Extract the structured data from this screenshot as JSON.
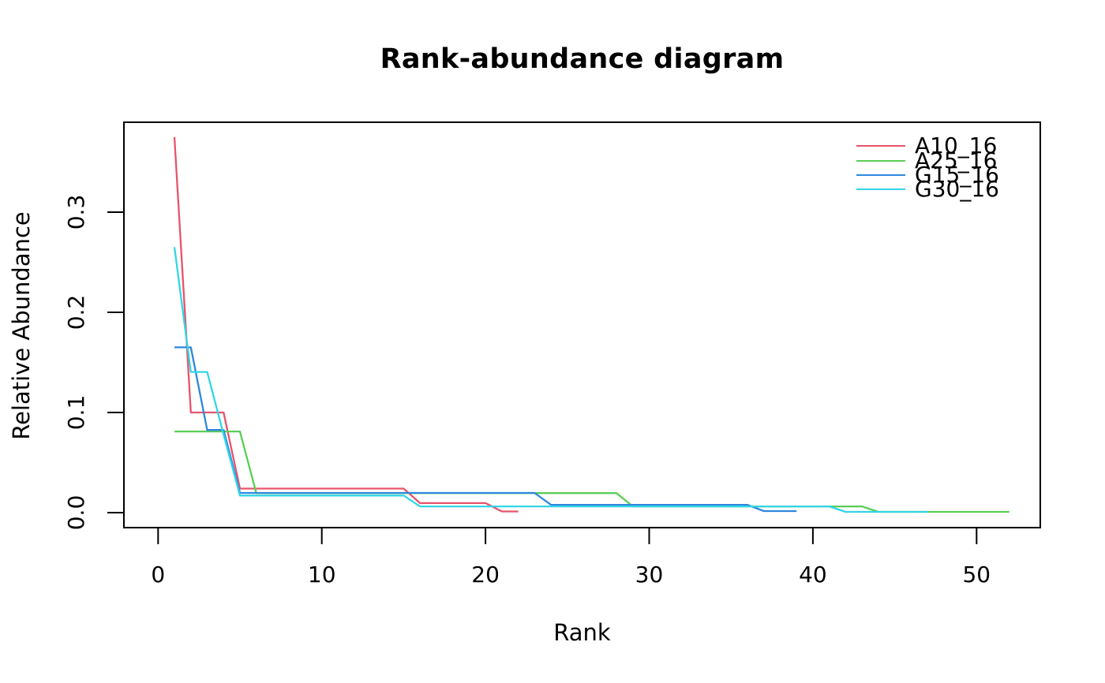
{
  "chart_data": {
    "type": "line",
    "title": "Rank-abundance diagram",
    "xlabel": "Rank",
    "ylabel": "Relative Abundance",
    "grid": false,
    "legend_position": "top-right",
    "line_style": "step-like polyline of per-rank relative abundances",
    "xlim": [
      -1,
      53
    ],
    "ylim": [
      0,
      0.39
    ],
    "x_axis": {
      "ticks": [
        0,
        10,
        20,
        30,
        40,
        50
      ],
      "tick_labels": [
        "0",
        "10",
        "20",
        "30",
        "40",
        "50"
      ]
    },
    "y_axis": {
      "ticks": [
        0.0,
        0.1,
        0.2,
        0.3
      ],
      "tick_labels": [
        "0.0",
        "0.1",
        "0.2",
        "0.3"
      ]
    },
    "x_start_rank": 1,
    "series": [
      {
        "name": "A10_16",
        "color": "#e6546b",
        "values": [
          0.375,
          0.1,
          0.1,
          0.1,
          0.024,
          0.024,
          0.024,
          0.024,
          0.024,
          0.024,
          0.024,
          0.024,
          0.024,
          0.024,
          0.024,
          0.0095,
          0.0095,
          0.0095,
          0.0095,
          0.0095,
          0.0012,
          0.0012
        ]
      },
      {
        "name": "A25_16",
        "color": "#5bce55",
        "values": [
          0.081,
          0.081,
          0.081,
          0.081,
          0.081,
          0.0195,
          0.0195,
          0.0195,
          0.0195,
          0.0195,
          0.0195,
          0.0195,
          0.0195,
          0.0195,
          0.0195,
          0.0195,
          0.0195,
          0.0195,
          0.0195,
          0.0195,
          0.0195,
          0.0195,
          0.0195,
          0.0195,
          0.0195,
          0.0195,
          0.0195,
          0.0195,
          0.0062,
          0.0062,
          0.0062,
          0.0062,
          0.0062,
          0.0062,
          0.0062,
          0.0062,
          0.0062,
          0.0062,
          0.0062,
          0.0062,
          0.0062,
          0.0062,
          0.0062,
          0.0008,
          0.0008,
          0.0008,
          0.0008,
          0.0008,
          0.0008,
          0.0008,
          0.0008,
          0.0008
        ]
      },
      {
        "name": "G15_16",
        "color": "#2e87dd",
        "values": [
          0.165,
          0.165,
          0.0825,
          0.0825,
          0.0197,
          0.0197,
          0.0197,
          0.0197,
          0.0197,
          0.0197,
          0.0197,
          0.0197,
          0.0197,
          0.0197,
          0.0197,
          0.0197,
          0.0197,
          0.0197,
          0.0197,
          0.0197,
          0.0197,
          0.0197,
          0.0197,
          0.0078,
          0.0078,
          0.0078,
          0.0078,
          0.0078,
          0.0078,
          0.0078,
          0.0078,
          0.0078,
          0.0078,
          0.0078,
          0.0078,
          0.0078,
          0.0016,
          0.0016,
          0.0016
        ]
      },
      {
        "name": "G30_16",
        "color": "#33d5e6",
        "values": [
          0.265,
          0.1405,
          0.1405,
          0.078,
          0.0171,
          0.0171,
          0.0171,
          0.0171,
          0.0171,
          0.0171,
          0.0171,
          0.0171,
          0.0171,
          0.0171,
          0.0171,
          0.0062,
          0.0062,
          0.0062,
          0.0062,
          0.0062,
          0.0062,
          0.0062,
          0.0062,
          0.0062,
          0.0062,
          0.0062,
          0.0062,
          0.0062,
          0.0062,
          0.0062,
          0.0062,
          0.0062,
          0.0062,
          0.0062,
          0.0062,
          0.0062,
          0.0062,
          0.0062,
          0.0062,
          0.0062,
          0.0062,
          0.0008,
          0.0008,
          0.0008,
          0.0008,
          0.0008,
          0.0008
        ]
      }
    ],
    "axis_color": "#000000"
  }
}
